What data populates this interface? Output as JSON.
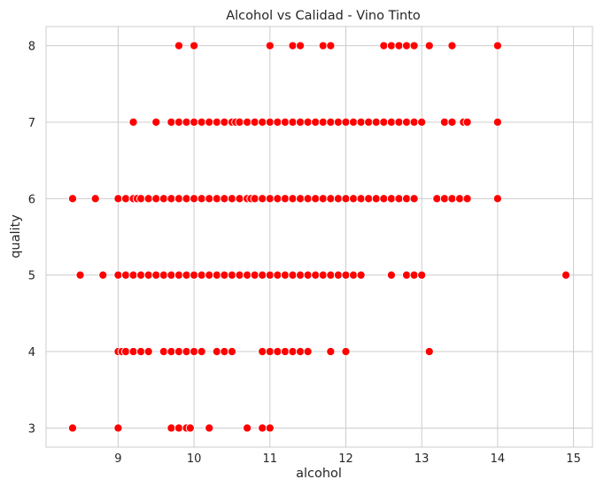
{
  "chart_data": {
    "type": "scatter",
    "title": "Alcohol vs Calidad - Vino Tinto",
    "xlabel": "alcohol",
    "ylabel": "quality",
    "xlim": [
      8.05,
      15.25
    ],
    "ylim": [
      2.75,
      8.25
    ],
    "xticks": [
      9,
      10,
      11,
      12,
      13,
      14,
      15
    ],
    "yticks": [
      3,
      4,
      5,
      6,
      7,
      8
    ],
    "grid": true,
    "marker_color": "#ff0000",
    "marker_edge": "#ffffff",
    "series": [
      {
        "points": [
          [
            8.4,
            3
          ],
          [
            9.0,
            3
          ],
          [
            9.7,
            3
          ],
          [
            9.8,
            3
          ],
          [
            9.9,
            3
          ],
          [
            9.95,
            3
          ],
          [
            10.2,
            3
          ],
          [
            10.7,
            3
          ],
          [
            10.9,
            3
          ],
          [
            11.0,
            3
          ],
          [
            9.0,
            4
          ],
          [
            9.05,
            4
          ],
          [
            9.1,
            4
          ],
          [
            9.2,
            4
          ],
          [
            9.3,
            4
          ],
          [
            9.4,
            4
          ],
          [
            9.6,
            4
          ],
          [
            9.7,
            4
          ],
          [
            9.8,
            4
          ],
          [
            9.9,
            4
          ],
          [
            10.0,
            4
          ],
          [
            10.1,
            4
          ],
          [
            10.3,
            4
          ],
          [
            10.4,
            4
          ],
          [
            10.5,
            4
          ],
          [
            10.9,
            4
          ],
          [
            11.0,
            4
          ],
          [
            11.1,
            4
          ],
          [
            11.2,
            4
          ],
          [
            11.3,
            4
          ],
          [
            11.4,
            4
          ],
          [
            11.5,
            4
          ],
          [
            11.8,
            4
          ],
          [
            12.0,
            4
          ],
          [
            13.1,
            4
          ],
          [
            8.5,
            5
          ],
          [
            8.8,
            5
          ],
          [
            9.0,
            5
          ],
          [
            9.1,
            5
          ],
          [
            9.2,
            5
          ],
          [
            9.3,
            5
          ],
          [
            9.4,
            5
          ],
          [
            9.5,
            5
          ],
          [
            9.6,
            5
          ],
          [
            9.7,
            5
          ],
          [
            9.8,
            5
          ],
          [
            9.9,
            5
          ],
          [
            10.0,
            5
          ],
          [
            10.1,
            5
          ],
          [
            10.2,
            5
          ],
          [
            10.3,
            5
          ],
          [
            10.4,
            5
          ],
          [
            10.5,
            5
          ],
          [
            10.6,
            5
          ],
          [
            10.7,
            5
          ],
          [
            10.8,
            5
          ],
          [
            10.9,
            5
          ],
          [
            11.0,
            5
          ],
          [
            11.1,
            5
          ],
          [
            11.2,
            5
          ],
          [
            11.3,
            5
          ],
          [
            11.4,
            5
          ],
          [
            11.5,
            5
          ],
          [
            11.6,
            5
          ],
          [
            11.7,
            5
          ],
          [
            11.8,
            5
          ],
          [
            11.9,
            5
          ],
          [
            12.0,
            5
          ],
          [
            12.1,
            5
          ],
          [
            12.2,
            5
          ],
          [
            12.6,
            5
          ],
          [
            12.8,
            5
          ],
          [
            12.9,
            5
          ],
          [
            13.0,
            5
          ],
          [
            14.9,
            5
          ],
          [
            8.4,
            6
          ],
          [
            8.7,
            6
          ],
          [
            9.0,
            6
          ],
          [
            9.1,
            6
          ],
          [
            9.2,
            6
          ],
          [
            9.25,
            6
          ],
          [
            9.3,
            6
          ],
          [
            9.4,
            6
          ],
          [
            9.5,
            6
          ],
          [
            9.6,
            6
          ],
          [
            9.7,
            6
          ],
          [
            9.8,
            6
          ],
          [
            9.9,
            6
          ],
          [
            10.0,
            6
          ],
          [
            10.1,
            6
          ],
          [
            10.2,
            6
          ],
          [
            10.3,
            6
          ],
          [
            10.4,
            6
          ],
          [
            10.5,
            6
          ],
          [
            10.6,
            6
          ],
          [
            10.7,
            6
          ],
          [
            10.75,
            6
          ],
          [
            10.8,
            6
          ],
          [
            10.9,
            6
          ],
          [
            11.0,
            6
          ],
          [
            11.1,
            6
          ],
          [
            11.2,
            6
          ],
          [
            11.3,
            6
          ],
          [
            11.4,
            6
          ],
          [
            11.5,
            6
          ],
          [
            11.6,
            6
          ],
          [
            11.7,
            6
          ],
          [
            11.8,
            6
          ],
          [
            11.9,
            6
          ],
          [
            12.0,
            6
          ],
          [
            12.1,
            6
          ],
          [
            12.2,
            6
          ],
          [
            12.3,
            6
          ],
          [
            12.4,
            6
          ],
          [
            12.5,
            6
          ],
          [
            12.6,
            6
          ],
          [
            12.7,
            6
          ],
          [
            12.8,
            6
          ],
          [
            12.9,
            6
          ],
          [
            13.2,
            6
          ],
          [
            13.3,
            6
          ],
          [
            13.4,
            6
          ],
          [
            13.5,
            6
          ],
          [
            13.6,
            6
          ],
          [
            14.0,
            6
          ],
          [
            9.2,
            7
          ],
          [
            9.5,
            7
          ],
          [
            9.7,
            7
          ],
          [
            9.8,
            7
          ],
          [
            9.9,
            7
          ],
          [
            10.0,
            7
          ],
          [
            10.1,
            7
          ],
          [
            10.2,
            7
          ],
          [
            10.3,
            7
          ],
          [
            10.4,
            7
          ],
          [
            10.5,
            7
          ],
          [
            10.55,
            7
          ],
          [
            10.6,
            7
          ],
          [
            10.7,
            7
          ],
          [
            10.8,
            7
          ],
          [
            10.9,
            7
          ],
          [
            11.0,
            7
          ],
          [
            11.1,
            7
          ],
          [
            11.2,
            7
          ],
          [
            11.3,
            7
          ],
          [
            11.4,
            7
          ],
          [
            11.5,
            7
          ],
          [
            11.6,
            7
          ],
          [
            11.7,
            7
          ],
          [
            11.8,
            7
          ],
          [
            11.9,
            7
          ],
          [
            12.0,
            7
          ],
          [
            12.1,
            7
          ],
          [
            12.2,
            7
          ],
          [
            12.3,
            7
          ],
          [
            12.4,
            7
          ],
          [
            12.5,
            7
          ],
          [
            12.6,
            7
          ],
          [
            12.7,
            7
          ],
          [
            12.8,
            7
          ],
          [
            12.9,
            7
          ],
          [
            13.0,
            7
          ],
          [
            13.3,
            7
          ],
          [
            13.4,
            7
          ],
          [
            13.55,
            7
          ],
          [
            13.6,
            7
          ],
          [
            14.0,
            7
          ],
          [
            9.8,
            8
          ],
          [
            10.0,
            8
          ],
          [
            11.0,
            8
          ],
          [
            11.3,
            8
          ],
          [
            11.4,
            8
          ],
          [
            11.7,
            8
          ],
          [
            11.8,
            8
          ],
          [
            12.5,
            8
          ],
          [
            12.6,
            8
          ],
          [
            12.7,
            8
          ],
          [
            12.8,
            8
          ],
          [
            12.9,
            8
          ],
          [
            13.1,
            8
          ],
          [
            13.4,
            8
          ],
          [
            14.0,
            8
          ]
        ]
      }
    ]
  }
}
